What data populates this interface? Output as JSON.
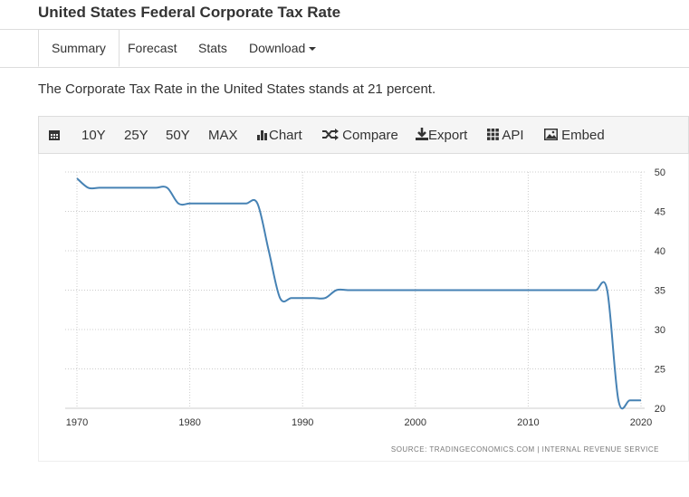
{
  "header": {
    "title": "United States Federal Corporate Tax Rate"
  },
  "tabs": [
    {
      "label": "Summary",
      "active": true
    },
    {
      "label": "Forecast"
    },
    {
      "label": "Stats"
    },
    {
      "label": "Download"
    }
  ],
  "description": "The Corporate Tax Rate in the United States stands at 21 percent.",
  "toolbar": {
    "items": [
      {
        "label": "",
        "icon": "calendar-icon"
      },
      {
        "label": "10Y"
      },
      {
        "label": "25Y"
      },
      {
        "label": "50Y"
      },
      {
        "label": "MAX"
      },
      {
        "label": "Chart",
        "icon": "bar-chart-icon"
      },
      {
        "label": "Compare",
        "icon": "shuffle-icon"
      },
      {
        "label": "Export",
        "icon": "download-icon"
      },
      {
        "label": "API",
        "icon": "grid-icon"
      },
      {
        "label": "Embed",
        "icon": "image-icon"
      }
    ]
  },
  "chart_data": {
    "type": "line",
    "color": "#4682b4",
    "grid": true,
    "x": [
      1970,
      1971,
      1972,
      1973,
      1974,
      1975,
      1976,
      1977,
      1978,
      1979,
      1980,
      1981,
      1982,
      1983,
      1984,
      1985,
      1986,
      1987,
      1988,
      1989,
      1990,
      1991,
      1992,
      1993,
      1994,
      1995,
      1996,
      1997,
      1998,
      1999,
      2000,
      2001,
      2002,
      2003,
      2004,
      2005,
      2006,
      2007,
      2008,
      2009,
      2010,
      2011,
      2012,
      2013,
      2014,
      2015,
      2016,
      2017,
      2018,
      2019,
      2020
    ],
    "y": [
      49.2,
      48,
      48,
      48,
      48,
      48,
      48,
      48,
      48,
      46,
      46,
      46,
      46,
      46,
      46,
      46,
      46,
      40,
      34,
      34,
      34,
      34,
      34,
      35,
      35,
      35,
      35,
      35,
      35,
      35,
      35,
      35,
      35,
      35,
      35,
      35,
      35,
      35,
      35,
      35,
      35,
      35,
      35,
      35,
      35,
      35,
      35,
      35,
      21,
      21,
      21
    ],
    "xlim": [
      1969,
      2020.3
    ],
    "ylim": [
      20,
      50
    ],
    "xticks": [
      1970,
      1980,
      1990,
      2000,
      2010,
      2020
    ],
    "yticks": [
      20,
      25,
      30,
      35,
      40,
      45,
      50
    ],
    "source": "SOURCE: TRADINGECONOMICS.COM | INTERNAL REVENUE SERVICE"
  }
}
